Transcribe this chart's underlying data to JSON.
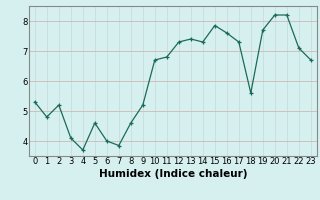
{
  "x": [
    0,
    1,
    2,
    3,
    4,
    5,
    6,
    7,
    8,
    9,
    10,
    11,
    12,
    13,
    14,
    15,
    16,
    17,
    18,
    19,
    20,
    21,
    22,
    23
  ],
  "y": [
    5.3,
    4.8,
    5.2,
    4.1,
    3.7,
    4.6,
    4.0,
    3.85,
    4.6,
    5.2,
    6.7,
    6.8,
    7.3,
    7.4,
    7.3,
    7.85,
    7.6,
    7.3,
    5.6,
    7.7,
    8.2,
    8.2,
    7.1,
    6.7
  ],
  "xlabel": "Humidex (Indice chaleur)",
  "ylim": [
    3.5,
    8.5
  ],
  "xlim": [
    -0.5,
    23.5
  ],
  "yticks": [
    4,
    5,
    6,
    7,
    8
  ],
  "xticks": [
    0,
    1,
    2,
    3,
    4,
    5,
    6,
    7,
    8,
    9,
    10,
    11,
    12,
    13,
    14,
    15,
    16,
    17,
    18,
    19,
    20,
    21,
    22,
    23
  ],
  "line_color": "#1a6b5a",
  "marker_color": "#1a6b5a",
  "bg_color": "#d6f0f0",
  "grid_color": "#c8dede",
  "grid_vcolor": "#d0b8b8",
  "axis_color": "#888888",
  "xlabel_fontsize": 7.5,
  "tick_fontsize": 6.0
}
